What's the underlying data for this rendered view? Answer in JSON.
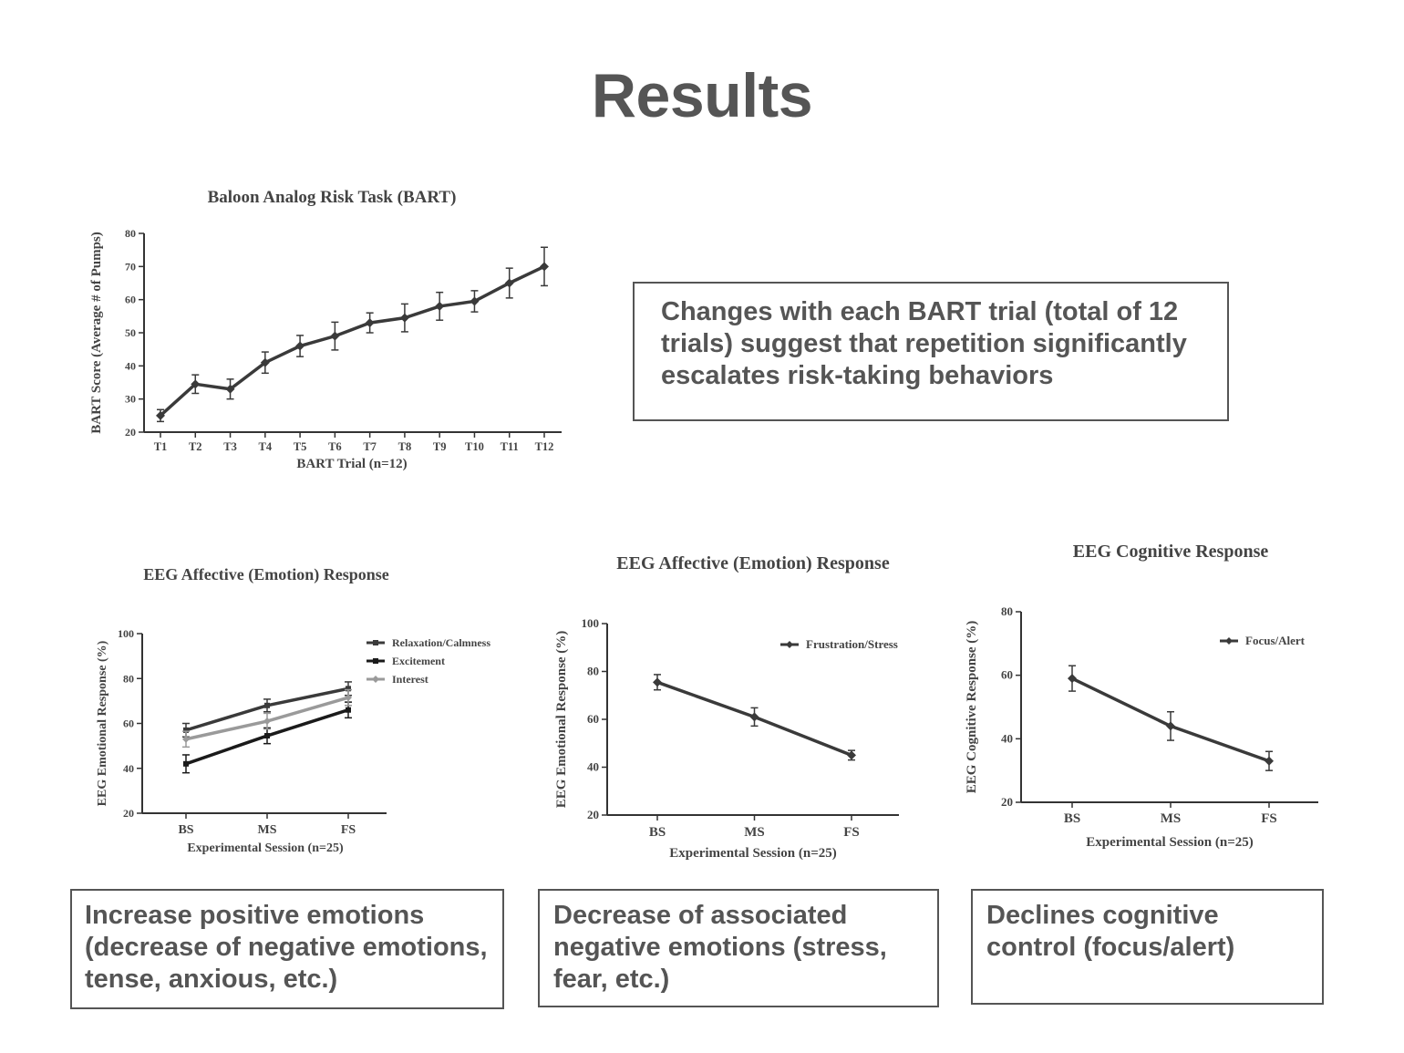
{
  "page": {
    "title": "Results"
  },
  "chart_data": [
    {
      "id": "bart",
      "type": "line",
      "title": "Baloon Analog Risk Task (BART)",
      "xlabel": "BART Trial (n=12)",
      "ylabel": "BART Score (Average # of Pumps)",
      "categories": [
        "T1",
        "T2",
        "T3",
        "T4",
        "T5",
        "T6",
        "T7",
        "T8",
        "T9",
        "T10",
        "T11",
        "T12"
      ],
      "ylim": [
        20,
        80
      ],
      "yticks": [
        20,
        30,
        40,
        50,
        60,
        70,
        80
      ],
      "legend": "none",
      "series": [
        {
          "name": "BART Score",
          "color": "#3a3a3a",
          "marker": "diamond",
          "values": [
            25,
            34.5,
            33,
            41,
            46,
            49,
            53,
            54.5,
            58,
            59.5,
            65,
            70
          ],
          "errors": [
            1.8,
            2.8,
            3,
            3.2,
            3.2,
            4.2,
            3,
            4.2,
            4.2,
            3.2,
            4.5,
            5.8
          ]
        }
      ]
    },
    {
      "id": "eeg-affective-1",
      "type": "line",
      "title": "EEG Affective (Emotion) Response",
      "xlabel": "Experimental Session (n=25)",
      "ylabel": "EEG Emotional Response (%)",
      "categories": [
        "BS",
        "MS",
        "FS"
      ],
      "ylim": [
        20,
        100
      ],
      "yticks": [
        20,
        40,
        60,
        80,
        100
      ],
      "legend": "top-right",
      "series": [
        {
          "name": "Relaxation/Calmness",
          "color": "#3a3a3a",
          "marker": "square",
          "values": [
            57,
            68,
            75.5
          ],
          "errors": [
            3,
            2.8,
            3
          ]
        },
        {
          "name": "Excitement",
          "color": "#1a1a1a",
          "marker": "square",
          "values": [
            42,
            54.5,
            66
          ],
          "errors": [
            4,
            3.5,
            3.5
          ]
        },
        {
          "name": "Interest",
          "color": "#9a9a9a",
          "marker": "diamond",
          "values": [
            53,
            61,
            71.5
          ],
          "errors": [
            3.5,
            3.5,
            3.5
          ]
        }
      ]
    },
    {
      "id": "eeg-affective-2",
      "type": "line",
      "title": "EEG Affective (Emotion) Response",
      "xlabel": "Experimental Session (n=25)",
      "ylabel": "EEG Emotional Response (%)",
      "categories": [
        "BS",
        "MS",
        "FS"
      ],
      "ylim": [
        20,
        100
      ],
      "yticks": [
        20,
        40,
        60,
        80,
        100
      ],
      "legend": "top-right",
      "series": [
        {
          "name": "Frustration/Stress",
          "color": "#3a3a3a",
          "marker": "diamond",
          "values": [
            75.5,
            61,
            45
          ],
          "errors": [
            3.2,
            3.8,
            2
          ]
        }
      ]
    },
    {
      "id": "eeg-cognitive",
      "type": "line",
      "title": "EEG Cognitive Response",
      "xlabel": "Experimental Session (n=25)",
      "ylabel": "EEG Cognitive Response (%)",
      "categories": [
        "BS",
        "MS",
        "FS"
      ],
      "ylim": [
        20,
        80
      ],
      "yticks": [
        20,
        40,
        60,
        80
      ],
      "legend": "top-right",
      "series": [
        {
          "name": "Focus/Alert",
          "color": "#3a3a3a",
          "marker": "diamond",
          "values": [
            59,
            44,
            33
          ],
          "errors": [
            4,
            4.5,
            3
          ]
        }
      ]
    }
  ],
  "captions": {
    "bart": "Changes with each BART trial (total of 12 trials) suggest that repetition significantly escalates risk-taking behaviors",
    "positive": "Increase positive emotions (decrease of negative emotions, tense, anxious, etc.)",
    "negative": "Decrease of associated negative emotions (stress, fear, etc.)",
    "cognitive": "Declines cognitive control  (focus/alert)"
  }
}
